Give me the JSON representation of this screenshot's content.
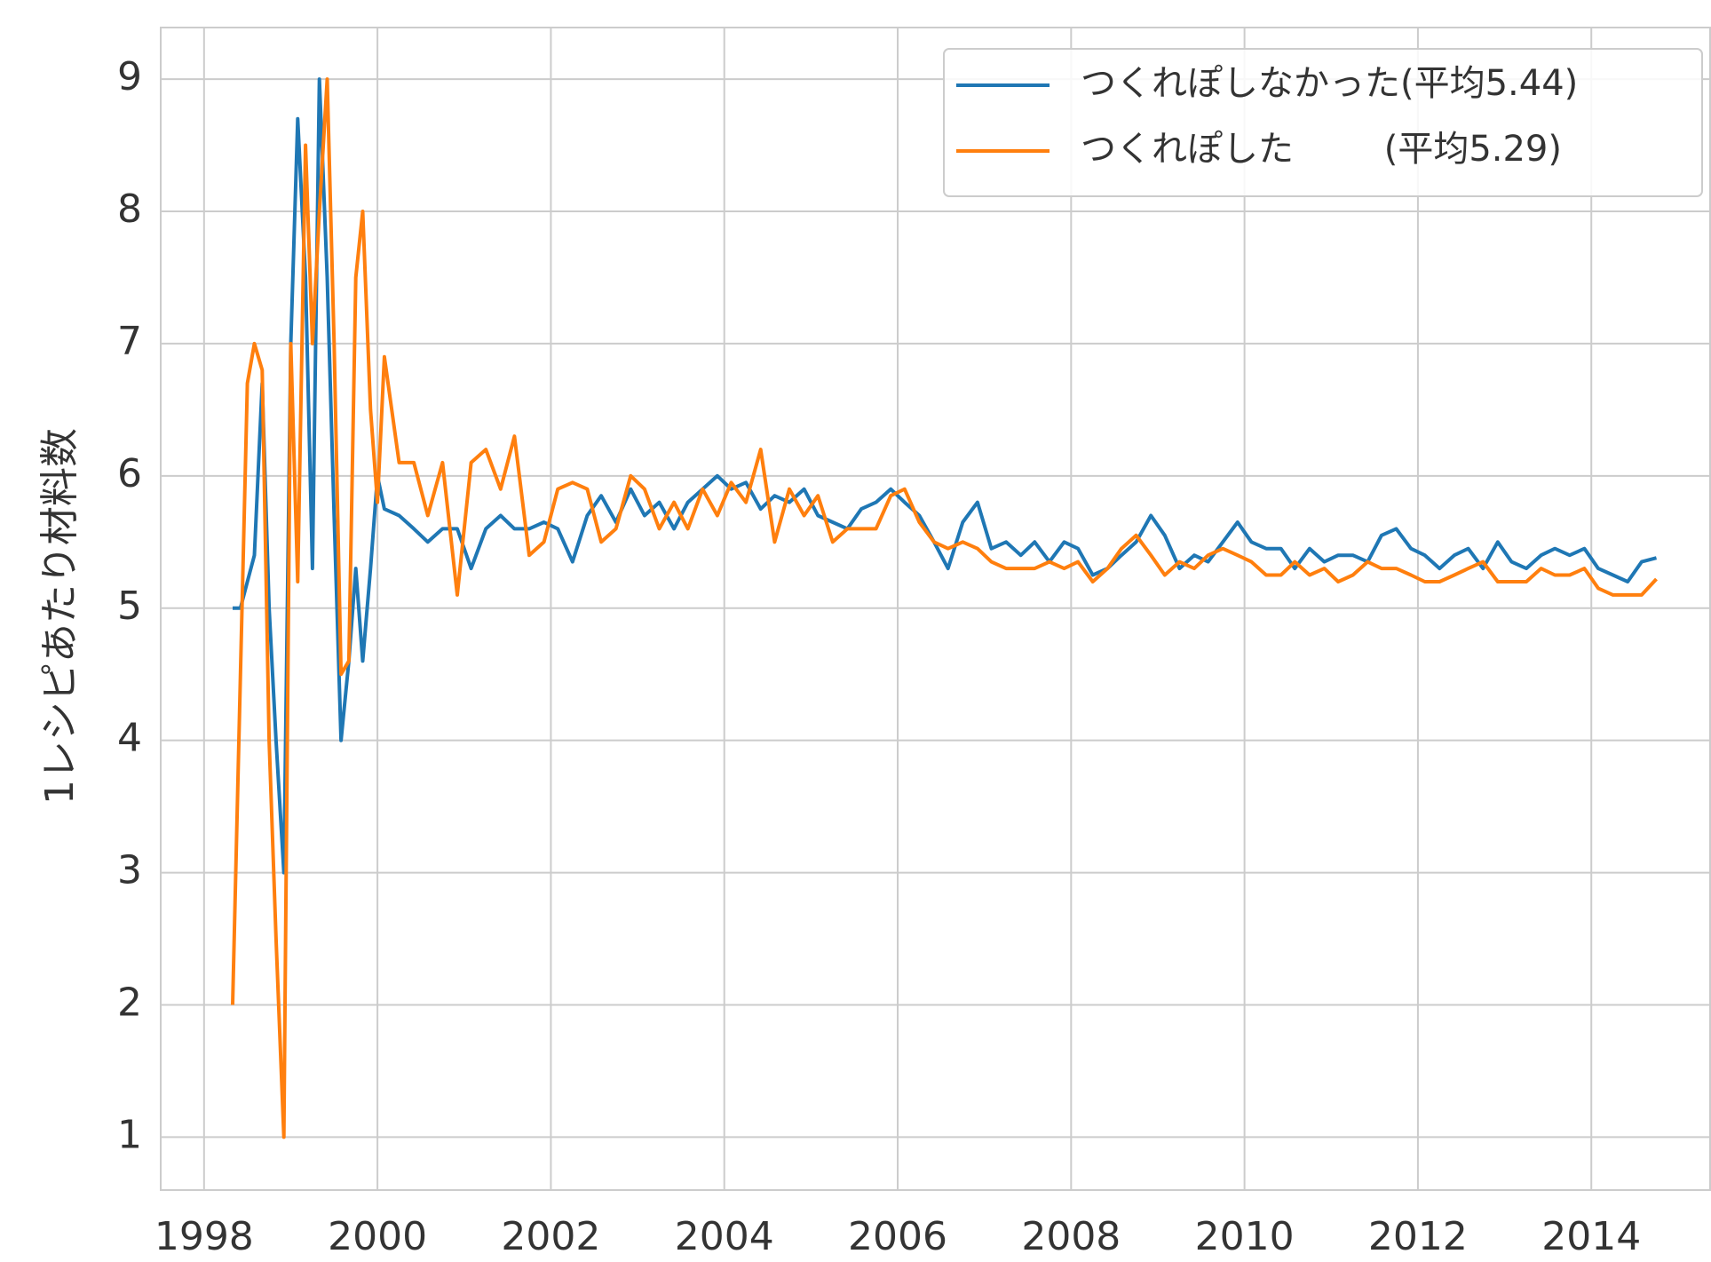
{
  "chart_data": {
    "type": "line",
    "ylabel": "1レシピあたり材料数",
    "x": [
      1998.33,
      1998.42,
      1998.5,
      1998.58,
      1998.67,
      1998.75,
      1998.83,
      1998.92,
      1999.0,
      1999.08,
      1999.17,
      1999.25,
      1999.33,
      1999.42,
      1999.5,
      1999.58,
      1999.67,
      1999.75,
      1999.83,
      1999.92,
      2000.0,
      2000.08,
      2000.25,
      2000.42,
      2000.58,
      2000.75,
      2000.92,
      2001.08,
      2001.25,
      2001.42,
      2001.58,
      2001.75,
      2001.92,
      2002.08,
      2002.25,
      2002.42,
      2002.58,
      2002.75,
      2002.92,
      2003.08,
      2003.25,
      2003.42,
      2003.58,
      2003.75,
      2003.92,
      2004.08,
      2004.25,
      2004.42,
      2004.58,
      2004.75,
      2004.92,
      2005.08,
      2005.25,
      2005.42,
      2005.58,
      2005.75,
      2005.92,
      2006.08,
      2006.25,
      2006.42,
      2006.58,
      2006.75,
      2006.92,
      2007.08,
      2007.25,
      2007.42,
      2007.58,
      2007.75,
      2007.92,
      2008.08,
      2008.25,
      2008.42,
      2008.58,
      2008.75,
      2008.92,
      2009.08,
      2009.25,
      2009.42,
      2009.58,
      2009.75,
      2009.92,
      2010.08,
      2010.25,
      2010.42,
      2010.58,
      2010.75,
      2010.92,
      2011.08,
      2011.25,
      2011.42,
      2011.58,
      2011.75,
      2011.92,
      2012.08,
      2012.25,
      2012.42,
      2012.58,
      2012.75,
      2012.92,
      2013.08,
      2013.25,
      2013.42,
      2013.58,
      2013.75,
      2013.92,
      2014.08,
      2014.25,
      2014.42,
      2014.58,
      2014.75
    ],
    "series": [
      {
        "name": "つくれぽしなかった(平均5.44)",
        "color": "#1f77b4",
        "values": [
          5.0,
          5.0,
          5.2,
          5.4,
          6.7,
          5.0,
          4.0,
          3.0,
          7.0,
          8.7,
          7.5,
          5.3,
          9.0,
          7.5,
          5.7,
          4.0,
          4.6,
          5.3,
          4.6,
          5.3,
          6.0,
          5.75,
          5.7,
          5.6,
          5.5,
          5.6,
          5.6,
          5.3,
          5.6,
          5.7,
          5.6,
          5.6,
          5.65,
          5.6,
          5.35,
          5.7,
          5.85,
          5.65,
          5.9,
          5.7,
          5.8,
          5.6,
          5.8,
          5.9,
          6.0,
          5.9,
          5.95,
          5.75,
          5.85,
          5.8,
          5.9,
          5.7,
          5.65,
          5.6,
          5.75,
          5.8,
          5.9,
          5.8,
          5.7,
          5.5,
          5.3,
          5.65,
          5.8,
          5.45,
          5.5,
          5.4,
          5.5,
          5.35,
          5.5,
          5.45,
          5.25,
          5.3,
          5.4,
          5.5,
          5.7,
          5.55,
          5.3,
          5.4,
          5.35,
          5.5,
          5.65,
          5.5,
          5.45,
          5.45,
          5.3,
          5.45,
          5.35,
          5.4,
          5.4,
          5.35,
          5.55,
          5.6,
          5.45,
          5.4,
          5.3,
          5.4,
          5.45,
          5.3,
          5.5,
          5.35,
          5.3,
          5.4,
          5.45,
          5.4,
          5.45,
          5.3,
          5.25,
          5.2,
          5.35,
          5.38
        ]
      },
      {
        "name": "つくれぽした        (平均5.29)",
        "color": "#ff7f0e",
        "values": [
          2.0,
          4.5,
          6.7,
          7.0,
          6.8,
          4.0,
          2.5,
          1.0,
          7.0,
          5.2,
          8.5,
          7.0,
          8.0,
          9.0,
          7.0,
          4.5,
          4.6,
          7.5,
          8.0,
          6.5,
          5.8,
          6.9,
          6.1,
          6.1,
          5.7,
          6.1,
          5.1,
          6.1,
          6.2,
          5.9,
          6.3,
          5.4,
          5.5,
          5.9,
          5.95,
          5.9,
          5.5,
          5.6,
          6.0,
          5.9,
          5.6,
          5.8,
          5.6,
          5.9,
          5.7,
          5.95,
          5.8,
          6.2,
          5.5,
          5.9,
          5.7,
          5.85,
          5.5,
          5.6,
          5.6,
          5.6,
          5.85,
          5.9,
          5.65,
          5.5,
          5.45,
          5.5,
          5.45,
          5.35,
          5.3,
          5.3,
          5.3,
          5.35,
          5.3,
          5.35,
          5.2,
          5.3,
          5.45,
          5.55,
          5.4,
          5.25,
          5.35,
          5.3,
          5.4,
          5.45,
          5.4,
          5.35,
          5.25,
          5.25,
          5.35,
          5.25,
          5.3,
          5.2,
          5.25,
          5.35,
          5.3,
          5.3,
          5.25,
          5.2,
          5.2,
          5.25,
          5.3,
          5.35,
          5.2,
          5.2,
          5.2,
          5.3,
          5.25,
          5.25,
          5.3,
          5.15,
          5.1,
          5.1,
          5.1,
          5.22
        ]
      }
    ],
    "xlim": [
      1997.5,
      2015.37
    ],
    "xticks": [
      1998,
      2000,
      2002,
      2004,
      2006,
      2008,
      2010,
      2012,
      2014
    ],
    "ylim": [
      0.6,
      9.39
    ],
    "yticks": [
      1,
      2,
      3,
      4,
      5,
      6,
      7,
      8,
      9
    ],
    "grid": true,
    "legend": "upper right"
  }
}
